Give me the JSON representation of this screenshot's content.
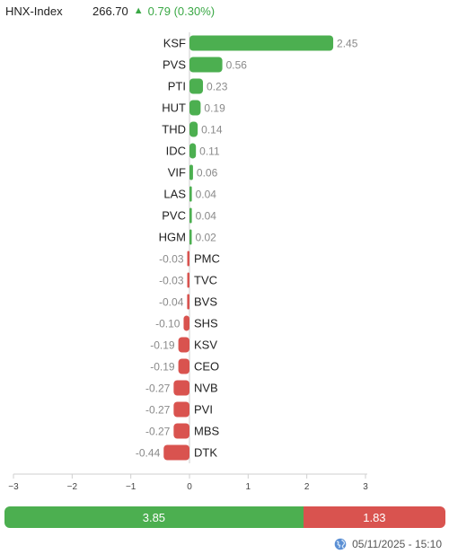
{
  "header": {
    "index_name": "HNX-Index",
    "index_value": "266.70",
    "change": "0.79 (0.30%)",
    "direction_icon": "triangle-up-icon"
  },
  "summary": {
    "advance_value": 3.85,
    "decline_value": 1.83,
    "advance_label": "3.85",
    "decline_label": "1.83",
    "advance_color": "#4caf50",
    "decline_color": "#d9534f"
  },
  "footer": {
    "timestamp": "05/11/2025 - 15:10",
    "icon": "globe-icon"
  },
  "chart_data": {
    "type": "bar",
    "orientation": "horizontal",
    "xlim": [
      -3,
      3
    ],
    "xticks": [
      -3,
      -2,
      -1,
      0,
      1,
      2,
      3
    ],
    "xtick_labels": [
      "−3",
      "−2",
      "−1",
      "0",
      "1",
      "2",
      "3"
    ],
    "categories": [
      "KSF",
      "PVS",
      "PTI",
      "HUT",
      "THD",
      "IDC",
      "VIF",
      "LAS",
      "PVC",
      "HGM",
      "PMC",
      "TVC",
      "BVS",
      "SHS",
      "KSV",
      "CEO",
      "NVB",
      "PVI",
      "MBS",
      "DTK"
    ],
    "values": [
      2.45,
      0.56,
      0.23,
      0.19,
      0.14,
      0.11,
      0.06,
      0.04,
      0.04,
      0.02,
      -0.03,
      -0.03,
      -0.04,
      -0.1,
      -0.19,
      -0.19,
      -0.27,
      -0.27,
      -0.27,
      -0.44
    ],
    "value_labels": [
      "2.45",
      "0.56",
      "0.23",
      "0.19",
      "0.14",
      "0.11",
      "0.06",
      "0.04",
      "0.04",
      "0.02",
      "-0.03",
      "-0.03",
      "-0.04",
      "-0.10",
      "-0.19",
      "-0.19",
      "-0.27",
      "-0.27",
      "-0.27",
      "-0.44"
    ],
    "positive_color": "#4caf50",
    "negative_color": "#d9534f",
    "grid": false
  }
}
